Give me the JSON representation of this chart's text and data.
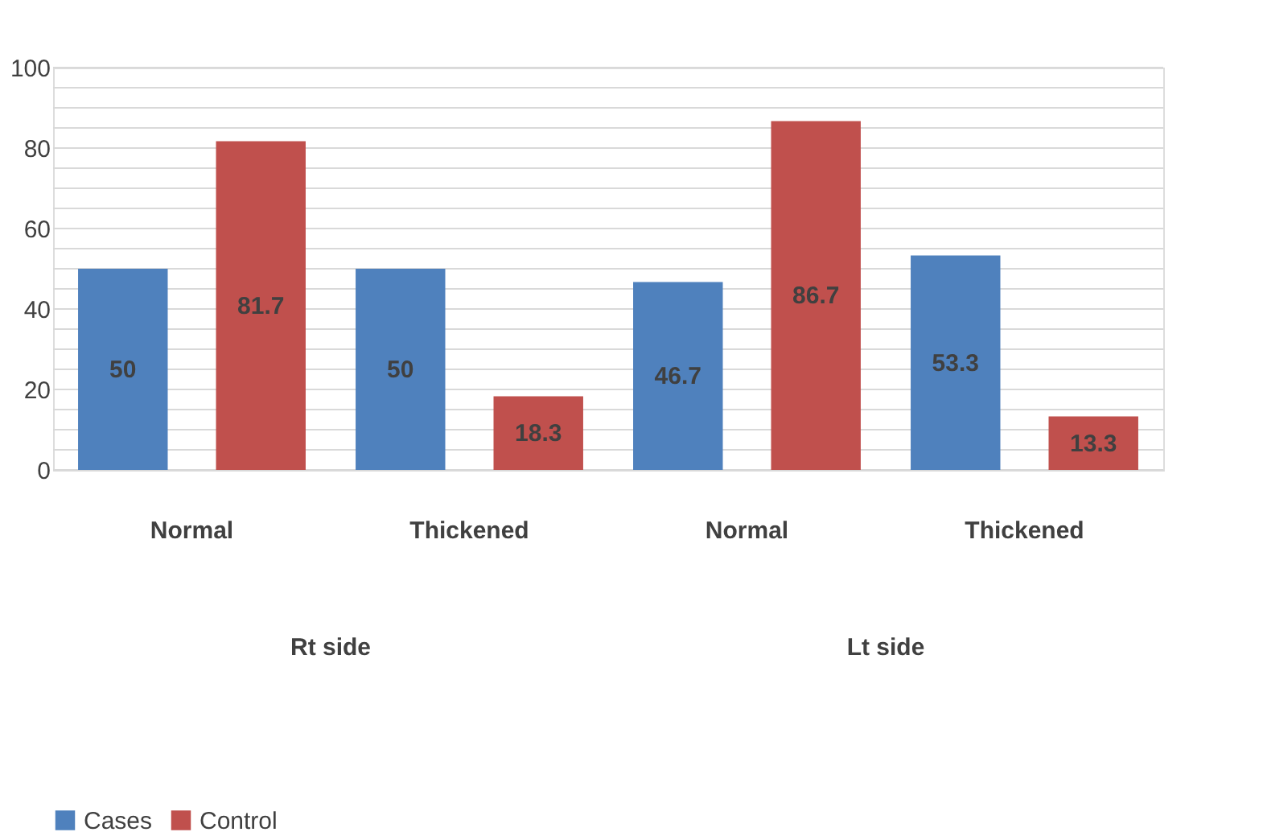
{
  "chart_data": {
    "type": "bar",
    "categories": [
      "Normal",
      "Thickened",
      "Normal",
      "Thickened"
    ],
    "series": [
      {
        "name": "Cases",
        "color": "#4f81bd",
        "values": [
          50,
          50,
          46.7,
          53.3
        ]
      },
      {
        "name": "Control",
        "color": "#c0504d",
        "values": [
          81.7,
          18.3,
          86.7,
          13.3
        ]
      }
    ],
    "ylim": [
      0,
      100
    ],
    "yticks": [
      0,
      {
        "value": 5,
        "label": null
      },
      {
        "value": 10,
        "label": null
      },
      {
        "value": 15,
        "label": null
      },
      20,
      {
        "value": 25,
        "label": null
      },
      {
        "value": 30,
        "label": null
      },
      {
        "value": 35,
        "label": null
      },
      40,
      {
        "value": 45,
        "label": null
      },
      {
        "value": 50,
        "label": null
      },
      {
        "value": 55,
        "label": null
      },
      60,
      {
        "value": 65,
        "label": null
      },
      {
        "value": 70,
        "label": null
      },
      {
        "value": 75,
        "label": null
      },
      80,
      {
        "value": 85,
        "label": null
      },
      {
        "value": 90,
        "label": null
      },
      {
        "value": 95,
        "label": null
      },
      100
    ],
    "annotations": [
      "Rt side",
      "Lt side"
    ],
    "grid": "y",
    "legend": "bottom",
    "data_labels": true
  }
}
